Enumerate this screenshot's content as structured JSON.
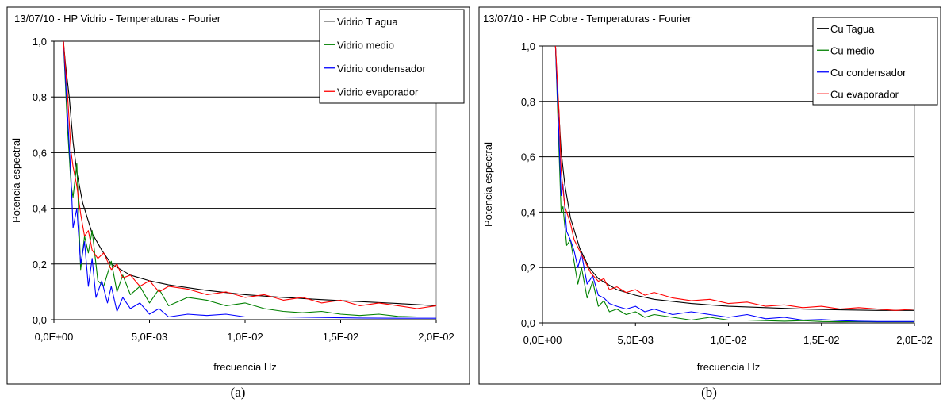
{
  "chart_data": [
    {
      "type": "line",
      "title": "13/07/10 - HP Vidrio - Temperaturas - Fourier",
      "xlabel": "frecuencia Hz",
      "ylabel": "Potencia espectral",
      "caption": "(a)",
      "xlim": [
        0,
        0.02
      ],
      "ylim": [
        0,
        1.0
      ],
      "xticks": [
        "0,0E+00",
        "5,0E-03",
        "1,0E-02",
        "1,5E-02",
        "2,0E-02"
      ],
      "yticks": [
        "0,0",
        "0,2",
        "0,4",
        "0,6",
        "0,8",
        "1,0"
      ],
      "grid": "horizontal",
      "legend_position": "top-right",
      "series": [
        {
          "name": "Vidrio T agua",
          "color": "#000000",
          "x": [
            0.0005,
            0.0006,
            0.0008,
            0.001,
            0.0012,
            0.0015,
            0.002,
            0.0025,
            0.003,
            0.004,
            0.005,
            0.006,
            0.008,
            0.01,
            0.012,
            0.014,
            0.016,
            0.018,
            0.02
          ],
          "y": [
            1.0,
            0.92,
            0.8,
            0.64,
            0.53,
            0.42,
            0.31,
            0.25,
            0.2,
            0.16,
            0.14,
            0.125,
            0.105,
            0.09,
            0.08,
            0.072,
            0.065,
            0.058,
            0.05
          ]
        },
        {
          "name": "Vidrio medio",
          "color": "#008000",
          "x": [
            0.0005,
            0.0007,
            0.0009,
            0.001,
            0.0012,
            0.0014,
            0.0016,
            0.0018,
            0.002,
            0.0023,
            0.0026,
            0.003,
            0.0033,
            0.0036,
            0.004,
            0.0045,
            0.005,
            0.0055,
            0.006,
            0.007,
            0.008,
            0.009,
            0.01,
            0.011,
            0.012,
            0.013,
            0.014,
            0.015,
            0.016,
            0.017,
            0.018,
            0.019,
            0.02
          ],
          "y": [
            1.0,
            0.7,
            0.48,
            0.44,
            0.56,
            0.18,
            0.3,
            0.24,
            0.32,
            0.14,
            0.12,
            0.21,
            0.1,
            0.16,
            0.09,
            0.12,
            0.06,
            0.11,
            0.05,
            0.08,
            0.07,
            0.05,
            0.06,
            0.04,
            0.03,
            0.025,
            0.03,
            0.02,
            0.015,
            0.02,
            0.012,
            0.01,
            0.01
          ]
        },
        {
          "name": "Vidrio condensador",
          "color": "#0000ff",
          "x": [
            0.0005,
            0.0007,
            0.0009,
            0.001,
            0.0012,
            0.0014,
            0.0016,
            0.0018,
            0.002,
            0.0022,
            0.0025,
            0.0028,
            0.003,
            0.0033,
            0.0036,
            0.004,
            0.0045,
            0.005,
            0.0055,
            0.006,
            0.007,
            0.008,
            0.009,
            0.01,
            0.012,
            0.014,
            0.016,
            0.018,
            0.02
          ],
          "y": [
            1.0,
            0.75,
            0.5,
            0.33,
            0.4,
            0.2,
            0.28,
            0.12,
            0.22,
            0.08,
            0.14,
            0.06,
            0.12,
            0.03,
            0.08,
            0.04,
            0.06,
            0.02,
            0.04,
            0.01,
            0.02,
            0.015,
            0.02,
            0.01,
            0.01,
            0.008,
            0.006,
            0.005,
            0.005
          ]
        },
        {
          "name": "Vidrio evaporador",
          "color": "#ff0000",
          "x": [
            0.0005,
            0.0007,
            0.0009,
            0.001,
            0.0012,
            0.0014,
            0.0016,
            0.0018,
            0.002,
            0.0023,
            0.0026,
            0.003,
            0.0033,
            0.0036,
            0.004,
            0.0045,
            0.005,
            0.0055,
            0.006,
            0.007,
            0.008,
            0.009,
            0.01,
            0.011,
            0.012,
            0.013,
            0.014,
            0.015,
            0.016,
            0.017,
            0.018,
            0.019,
            0.02
          ],
          "y": [
            1.0,
            0.82,
            0.6,
            0.55,
            0.48,
            0.38,
            0.3,
            0.32,
            0.25,
            0.22,
            0.24,
            0.18,
            0.2,
            0.15,
            0.16,
            0.12,
            0.14,
            0.1,
            0.12,
            0.11,
            0.09,
            0.1,
            0.08,
            0.09,
            0.07,
            0.08,
            0.06,
            0.07,
            0.05,
            0.06,
            0.05,
            0.04,
            0.05
          ]
        }
      ]
    },
    {
      "type": "line",
      "title": "13/07/10 - HP Cobre - Temperaturas - Fourier",
      "xlabel": "frecuencia Hz",
      "ylabel": "Potencia espectral",
      "caption": "(b)",
      "xlim": [
        0,
        0.02
      ],
      "ylim": [
        0,
        1.0
      ],
      "xticks": [
        "0,0E+00",
        "5,0E-03",
        "1,0E-02",
        "1,5E-02",
        "2,0E-02"
      ],
      "yticks": [
        "0,0",
        "0,2",
        "0,4",
        "0,6",
        "0,8",
        "1,0"
      ],
      "grid": "horizontal",
      "legend_position": "top-right",
      "series": [
        {
          "name": "Cu Tagua",
          "color": "#000000",
          "x": [
            0.0007,
            0.0008,
            0.001,
            0.0012,
            0.0015,
            0.002,
            0.0025,
            0.003,
            0.004,
            0.005,
            0.006,
            0.008,
            0.01,
            0.012,
            0.014,
            0.016,
            0.018,
            0.02
          ],
          "y": [
            1.0,
            0.85,
            0.62,
            0.5,
            0.38,
            0.27,
            0.2,
            0.16,
            0.12,
            0.1,
            0.085,
            0.07,
            0.06,
            0.055,
            0.05,
            0.047,
            0.045,
            0.045
          ]
        },
        {
          "name": "Cu medio",
          "color": "#008000",
          "x": [
            0.0007,
            0.0009,
            0.001,
            0.0011,
            0.0013,
            0.0015,
            0.0017,
            0.0019,
            0.0021,
            0.0024,
            0.0027,
            0.003,
            0.0033,
            0.0036,
            0.004,
            0.0045,
            0.005,
            0.0055,
            0.006,
            0.007,
            0.008,
            0.009,
            0.01,
            0.011,
            0.012,
            0.013,
            0.014,
            0.015,
            0.016,
            0.017,
            0.018,
            0.019,
            0.02
          ],
          "y": [
            1.0,
            0.6,
            0.4,
            0.42,
            0.28,
            0.3,
            0.22,
            0.14,
            0.2,
            0.09,
            0.15,
            0.06,
            0.08,
            0.04,
            0.05,
            0.03,
            0.04,
            0.02,
            0.03,
            0.02,
            0.01,
            0.02,
            0.01,
            0.01,
            0.008,
            0.006,
            0.008,
            0.005,
            0.004,
            0.005,
            0.004,
            0.004,
            0.004
          ]
        },
        {
          "name": "Cu condensador",
          "color": "#0000ff",
          "x": [
            0.0007,
            0.0009,
            0.001,
            0.0011,
            0.0013,
            0.0015,
            0.0017,
            0.0019,
            0.0021,
            0.0024,
            0.0027,
            0.003,
            0.0033,
            0.0036,
            0.004,
            0.0045,
            0.005,
            0.0055,
            0.006,
            0.007,
            0.008,
            0.009,
            0.01,
            0.011,
            0.012,
            0.013,
            0.014,
            0.015,
            0.016,
            0.017,
            0.018,
            0.019,
            0.02
          ],
          "y": [
            1.0,
            0.65,
            0.46,
            0.5,
            0.33,
            0.3,
            0.26,
            0.2,
            0.25,
            0.14,
            0.17,
            0.1,
            0.09,
            0.07,
            0.06,
            0.05,
            0.06,
            0.04,
            0.05,
            0.03,
            0.04,
            0.03,
            0.02,
            0.03,
            0.015,
            0.02,
            0.01,
            0.012,
            0.008,
            0.006,
            0.005,
            0.005,
            0.005
          ]
        },
        {
          "name": "Cu evaporador",
          "color": "#ff0000",
          "x": [
            0.0007,
            0.0009,
            0.001,
            0.0012,
            0.0015,
            0.0017,
            0.002,
            0.0023,
            0.0026,
            0.003,
            0.0033,
            0.0036,
            0.004,
            0.0045,
            0.005,
            0.0055,
            0.006,
            0.007,
            0.008,
            0.009,
            0.01,
            0.011,
            0.012,
            0.013,
            0.014,
            0.015,
            0.016,
            0.017,
            0.018,
            0.019,
            0.02
          ],
          "y": [
            1.0,
            0.75,
            0.55,
            0.42,
            0.36,
            0.3,
            0.26,
            0.22,
            0.18,
            0.15,
            0.16,
            0.12,
            0.13,
            0.11,
            0.12,
            0.1,
            0.11,
            0.09,
            0.08,
            0.085,
            0.07,
            0.075,
            0.06,
            0.065,
            0.055,
            0.06,
            0.05,
            0.055,
            0.05,
            0.045,
            0.05
          ]
        }
      ]
    }
  ]
}
